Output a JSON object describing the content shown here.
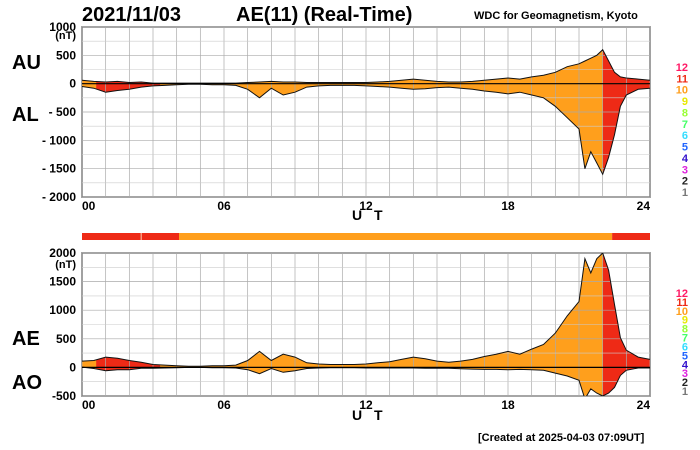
{
  "header": {
    "date": "2021/11/03",
    "title": "AE(11) (Real-Time)",
    "institution": "WDC for Geomagnetism, Kyoto",
    "created": "[Created at 2025-04-03 07:09UT]"
  },
  "colors": {
    "high": "#ee2a16",
    "mid": "#ff9f1c",
    "legend": [
      "#ff1a66",
      "#ee2a16",
      "#ff9f1c",
      "#e8e800",
      "#99ff33",
      "#44ff66",
      "#33ddff",
      "#2266ff",
      "#3311cc",
      "#dd22dd",
      "#222222",
      "#777777",
      "#bbbbbb"
    ]
  },
  "chart_data": [
    {
      "type": "area",
      "series_labels": [
        "AU",
        "AL"
      ],
      "xlabel": "U T",
      "ylabel_unit": "(nT)",
      "xlim": [
        0,
        24
      ],
      "ylim": [
        -2000,
        1000
      ],
      "xticks": [
        "00",
        "06",
        "12",
        "18",
        "24"
      ],
      "yticks": [
        "1000",
        "500",
        "0",
        "- 500",
        "- 1000",
        "- 1500",
        "- 2000"
      ],
      "grid": true,
      "x": [
        0,
        0.5,
        1,
        1.5,
        2,
        2.5,
        3,
        3.5,
        4,
        4.5,
        5,
        5.5,
        6,
        6.5,
        7,
        7.5,
        8,
        8.5,
        9,
        9.5,
        10,
        10.5,
        11,
        11.5,
        12,
        12.5,
        13,
        13.5,
        14,
        14.5,
        15,
        15.5,
        16,
        16.5,
        17,
        17.5,
        18,
        18.5,
        19,
        19.5,
        20,
        20.5,
        21,
        21.25,
        21.5,
        21.75,
        22,
        22.25,
        22.5,
        22.75,
        23,
        23.5,
        24
      ],
      "au": [
        60,
        40,
        30,
        40,
        20,
        30,
        10,
        10,
        10,
        10,
        10,
        10,
        10,
        10,
        20,
        30,
        40,
        30,
        30,
        20,
        20,
        20,
        20,
        20,
        20,
        30,
        40,
        60,
        80,
        60,
        40,
        30,
        30,
        40,
        60,
        80,
        100,
        80,
        120,
        150,
        200,
        300,
        350,
        400,
        450,
        500,
        600,
        400,
        200,
        120,
        100,
        80,
        60
      ],
      "al": [
        -50,
        -80,
        -150,
        -120,
        -100,
        -60,
        -40,
        -30,
        -20,
        -10,
        -10,
        -20,
        -20,
        -30,
        -100,
        -250,
        -80,
        -200,
        -150,
        -60,
        -40,
        -30,
        -30,
        -30,
        -40,
        -50,
        -60,
        -80,
        -100,
        -90,
        -70,
        -60,
        -80,
        -100,
        -130,
        -150,
        -180,
        -150,
        -200,
        -250,
        -400,
        -600,
        -800,
        -1500,
        -1200,
        -1400,
        -1600,
        -1300,
        -900,
        -400,
        -200,
        -100,
        -80
      ]
    },
    {
      "type": "area",
      "series_labels": [
        "AE",
        "AO"
      ],
      "xlabel": "U T",
      "ylabel_unit": "(nT)",
      "xlim": [
        0,
        24
      ],
      "ylim": [
        -500,
        2000
      ],
      "xticks": [
        "00",
        "06",
        "12",
        "18",
        "24"
      ],
      "yticks": [
        "2000",
        "1500",
        "1000",
        "500",
        "0",
        "-500"
      ],
      "grid": true,
      "x": [
        0,
        0.5,
        1,
        1.5,
        2,
        2.5,
        3,
        3.5,
        4,
        4.5,
        5,
        5.5,
        6,
        6.5,
        7,
        7.5,
        8,
        8.5,
        9,
        9.5,
        10,
        10.5,
        11,
        11.5,
        12,
        12.5,
        13,
        13.5,
        14,
        14.5,
        15,
        15.5,
        16,
        16.5,
        17,
        17.5,
        18,
        18.5,
        19,
        19.5,
        20,
        20.5,
        21,
        21.25,
        21.5,
        21.75,
        22,
        22.25,
        22.5,
        22.75,
        23,
        23.5,
        24
      ],
      "ae": [
        110,
        120,
        180,
        160,
        120,
        90,
        50,
        40,
        30,
        20,
        20,
        30,
        30,
        40,
        120,
        280,
        120,
        230,
        180,
        80,
        60,
        50,
        50,
        50,
        60,
        80,
        100,
        140,
        180,
        150,
        110,
        90,
        110,
        140,
        190,
        230,
        280,
        230,
        320,
        400,
        600,
        900,
        1150,
        1900,
        1650,
        1900,
        2000,
        1700,
        1100,
        520,
        300,
        180,
        140
      ],
      "ao": [
        5,
        -20,
        -60,
        -40,
        -40,
        -15,
        -15,
        -10,
        -5,
        0,
        0,
        -5,
        -5,
        -10,
        -40,
        -110,
        -20,
        -85,
        -60,
        -20,
        -10,
        -5,
        -5,
        -5,
        -10,
        -10,
        -10,
        -10,
        -10,
        -15,
        -15,
        -15,
        -25,
        -30,
        -35,
        -35,
        -40,
        -35,
        -40,
        -50,
        -100,
        -150,
        -225,
        -550,
        -375,
        -450,
        -500,
        -450,
        -350,
        -140,
        -50,
        -10,
        -10
      ]
    }
  ],
  "activity_bar": [
    {
      "from": 0,
      "to": 4.1,
      "level": "high"
    },
    {
      "from": 4.1,
      "to": 22.4,
      "level": "mid"
    },
    {
      "from": 22.4,
      "to": 24,
      "level": "high"
    }
  ],
  "red_segments": [
    [
      0.6,
      3.3
    ],
    [
      22.0,
      24
    ]
  ],
  "legend": [
    "12",
    "11",
    "10",
    "9",
    "8",
    "7",
    "6",
    "5",
    "4",
    "3",
    "2",
    "1"
  ]
}
